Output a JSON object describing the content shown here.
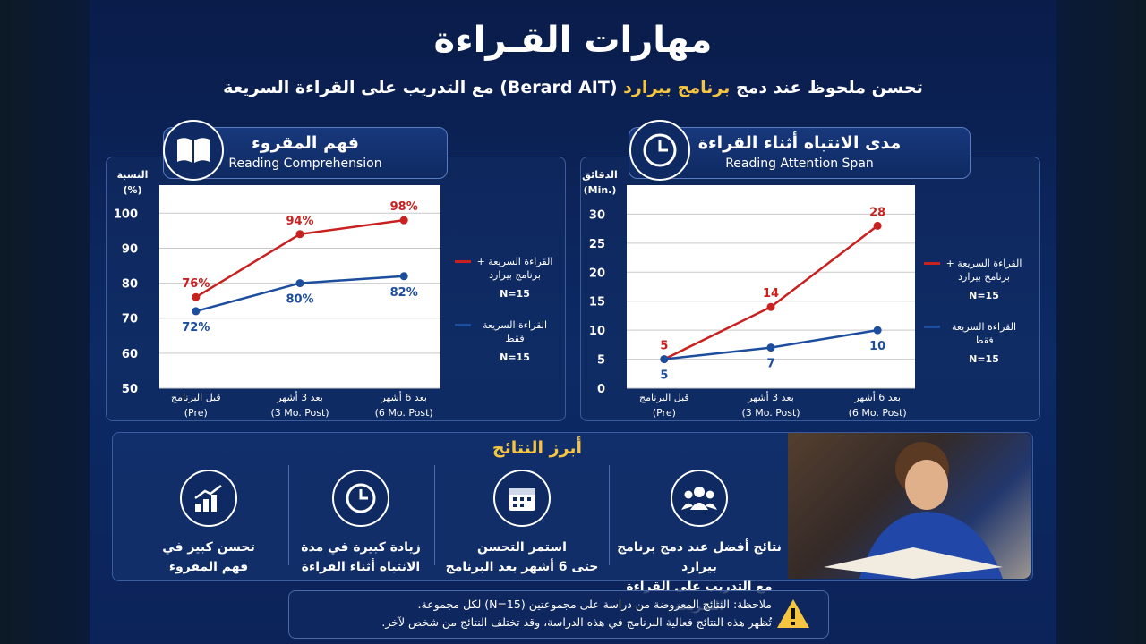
{
  "title": "مهارات القـراءة",
  "subtitle": {
    "part1": "تحسن ملحوظ عند دمج",
    "highlight": "برنامج بيرارد",
    "part2": "(Berard AIT) مع التدريب على القراءة السريعة"
  },
  "chart_data": [
    {
      "type": "line",
      "title": "فهم المقروء",
      "subtitle": "Reading Comprehension",
      "y_label": "النسبة",
      "y_unit": "(%)",
      "categories": [
        "قبل البرنامج",
        "بعد 3 أشهر",
        "بعد 6 أشهر"
      ],
      "category_sublabels": [
        "(Pre)",
        "(3 Mo. Post)",
        "(6 Mo. Post)"
      ],
      "ylim": [
        50,
        108
      ],
      "yticks": [
        50,
        60,
        70,
        80,
        90,
        100
      ],
      "grid": true,
      "series": [
        {
          "name": "القراءة السريعة + برنامج بيرارد",
          "n_label": "N=15",
          "color": "#c8211f",
          "values": [
            76,
            94,
            98
          ],
          "value_labels": [
            "76%",
            "94%",
            "98%"
          ]
        },
        {
          "name": "القراءة السريعة فقط",
          "n_label": "N=15",
          "color": "#1d4e9e",
          "values": [
            72,
            80,
            82
          ],
          "value_labels": [
            "72%",
            "80%",
            "82%"
          ]
        }
      ]
    },
    {
      "type": "line",
      "title": "مدى الانتباه أثناء القراءة",
      "subtitle": "Reading Attention Span",
      "y_label": "الدقائق",
      "y_unit": "(Min.)",
      "categories": [
        "قبل البرنامج",
        "بعد 3 أشهر",
        "بعد 6 أشهر"
      ],
      "category_sublabels": [
        "(Pre)",
        "(3 Mo. Post)",
        "(6 Mo. Post)"
      ],
      "ylim": [
        0,
        35
      ],
      "yticks": [
        0,
        5,
        10,
        15,
        20,
        25,
        30
      ],
      "grid": true,
      "series": [
        {
          "name": "القراءة السريعة + برنامج بيرارد",
          "n_label": "N=15",
          "color": "#c8211f",
          "values": [
            5,
            14,
            28
          ]
        },
        {
          "name": "القراءة السريعة فقط",
          "n_label": "N=15",
          "color": "#1d4e9e",
          "values": [
            5,
            7,
            10
          ]
        }
      ]
    }
  ],
  "highlights": {
    "title": "أبرز النتائج",
    "items": [
      {
        "lines": [
          "نتائج أفضل عند دمج برنامج بيرارد",
          "مع التدريب على القراءة السريعة"
        ]
      },
      {
        "lines": [
          "استمر التحسن",
          "حتى 6 أشهر بعد البرنامج"
        ]
      },
      {
        "lines": [
          "زيادة كبيرة في مدة",
          "الانتباه أثناء القراءة"
        ]
      },
      {
        "lines": [
          "تحسن كبير في",
          "فهم المقروء"
        ]
      }
    ]
  },
  "note": {
    "lines": [
      "ملاحظة: النتائج المعروضة من دراسة على مجموعتين (N=15) لكل مجموعة.",
      "تُظهر هذه النتائج فعالية البرنامج في هذه الدراسة، وقد تختلف النتائج من شخص لآخر."
    ]
  }
}
